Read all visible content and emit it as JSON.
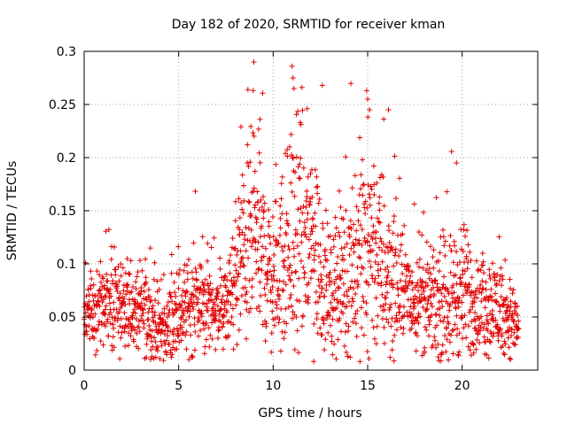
{
  "chart_data": {
    "type": "scatter",
    "title": "Day 182 of 2020, SRMTID for receiver kman",
    "xlabel": "GPS time / hours",
    "ylabel": "SRMTID / TECUs",
    "xlim": [
      0,
      24
    ],
    "ylim": [
      0,
      0.3
    ],
    "xticks": [
      0,
      5,
      10,
      15,
      20
    ],
    "xtick_labels": [
      "0",
      "5",
      "10",
      "15",
      "20"
    ],
    "yticks": [
      0,
      0.05,
      0.1,
      0.15,
      0.2,
      0.25,
      0.3
    ],
    "ytick_labels": [
      "0",
      "0.05",
      "0.1",
      "0.15",
      "0.2",
      "0.25",
      "0.3"
    ],
    "grid": true,
    "marker": "+",
    "marker_color": "#e00000",
    "series": [
      {
        "name": "SRMTID",
        "envelope": [
          {
            "x": 0.0,
            "center": 0.05,
            "spread": 0.02
          },
          {
            "x": 1.5,
            "center": 0.06,
            "spread": 0.025
          },
          {
            "x": 3.0,
            "center": 0.055,
            "spread": 0.025
          },
          {
            "x": 4.3,
            "center": 0.035,
            "spread": 0.02
          },
          {
            "x": 5.0,
            "center": 0.055,
            "spread": 0.025
          },
          {
            "x": 6.0,
            "center": 0.065,
            "spread": 0.03
          },
          {
            "x": 7.5,
            "center": 0.055,
            "spread": 0.02
          },
          {
            "x": 8.2,
            "center": 0.1,
            "spread": 0.05
          },
          {
            "x": 9.0,
            "center": 0.13,
            "spread": 0.06
          },
          {
            "x": 10.0,
            "center": 0.085,
            "spread": 0.04
          },
          {
            "x": 11.0,
            "center": 0.12,
            "spread": 0.07
          },
          {
            "x": 12.0,
            "center": 0.12,
            "spread": 0.07
          },
          {
            "x": 13.0,
            "center": 0.07,
            "spread": 0.03
          },
          {
            "x": 14.0,
            "center": 0.09,
            "spread": 0.05
          },
          {
            "x": 15.0,
            "center": 0.13,
            "spread": 0.07
          },
          {
            "x": 16.0,
            "center": 0.09,
            "spread": 0.05
          },
          {
            "x": 17.0,
            "center": 0.07,
            "spread": 0.03
          },
          {
            "x": 18.5,
            "center": 0.06,
            "spread": 0.03
          },
          {
            "x": 20.0,
            "center": 0.075,
            "spread": 0.04
          },
          {
            "x": 21.0,
            "center": 0.055,
            "spread": 0.025
          },
          {
            "x": 22.0,
            "center": 0.06,
            "spread": 0.03
          },
          {
            "x": 23.0,
            "center": 0.04,
            "spread": 0.02
          }
        ],
        "time_step_hours": 0.012,
        "notable_points": [
          {
            "x": 11.0,
            "y": 0.286
          },
          {
            "x": 11.05,
            "y": 0.275
          },
          {
            "x": 11.1,
            "y": 0.265
          },
          {
            "x": 11.8,
            "y": 0.246
          },
          {
            "x": 12.6,
            "y": 0.268
          },
          {
            "x": 14.95,
            "y": 0.263
          },
          {
            "x": 15.0,
            "y": 0.255
          },
          {
            "x": 15.1,
            "y": 0.245
          },
          {
            "x": 16.1,
            "y": 0.245
          },
          {
            "x": 9.3,
            "y": 0.236
          },
          {
            "x": 8.3,
            "y": 0.229
          },
          {
            "x": 19.7,
            "y": 0.195
          }
        ]
      }
    ]
  }
}
